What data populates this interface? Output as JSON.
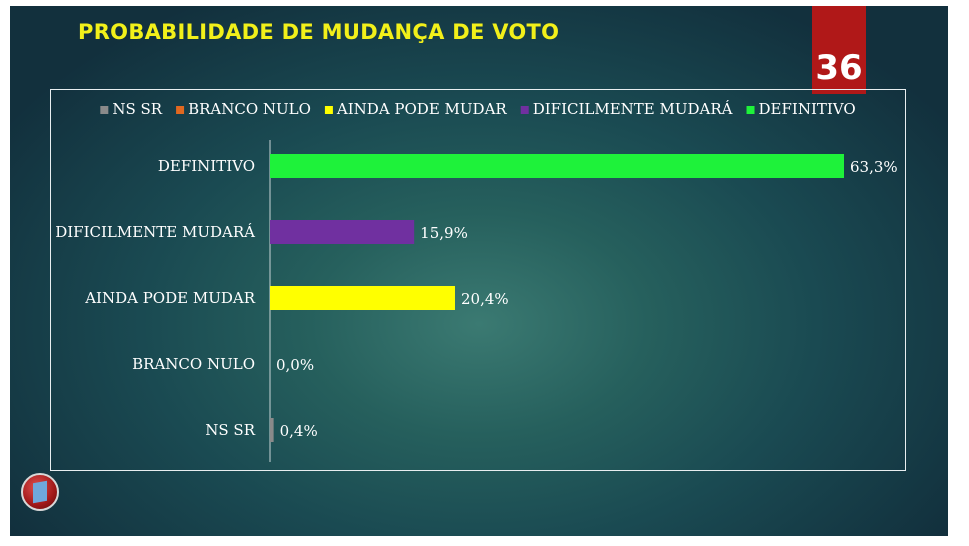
{
  "title": "PROBABILIDADE DE MUDANÇA DE VOTO",
  "page_number": "36",
  "icons": {
    "logo": "globe-logo-icon"
  },
  "chart_data": {
    "type": "bar",
    "orientation": "horizontal",
    "title": "PROBABILIDADE DE MUDANÇA DE VOTO",
    "categories": [
      "DEFINITIVO",
      "DIFICILMENTE MUDARÁ",
      "AINDA PODE MUDAR",
      "BRANCO NULO",
      "NS SR"
    ],
    "values": [
      63.3,
      15.9,
      20.4,
      0.0,
      0.4
    ],
    "value_labels": [
      "63,3%",
      "15,9%",
      "20,4%",
      "0,0%",
      "0,4%"
    ],
    "colors": [
      "#1ef23a",
      "#7030a0",
      "#ffff00",
      "#e06820",
      "#8a8a8a"
    ],
    "legend": {
      "placement": "top",
      "entries": [
        {
          "label": "NS SR",
          "color": "#8a8a8a"
        },
        {
          "label": "BRANCO NULO",
          "color": "#e06820"
        },
        {
          "label": "AINDA PODE MUDAR",
          "color": "#ffff00"
        },
        {
          "label": "DIFICILMENTE MUDARÁ",
          "color": "#7030a0"
        },
        {
          "label": "DEFINITIVO",
          "color": "#1ef23a"
        }
      ]
    },
    "xlim": [
      0,
      63.3
    ],
    "grid": false,
    "xlabel": "",
    "ylabel": ""
  }
}
